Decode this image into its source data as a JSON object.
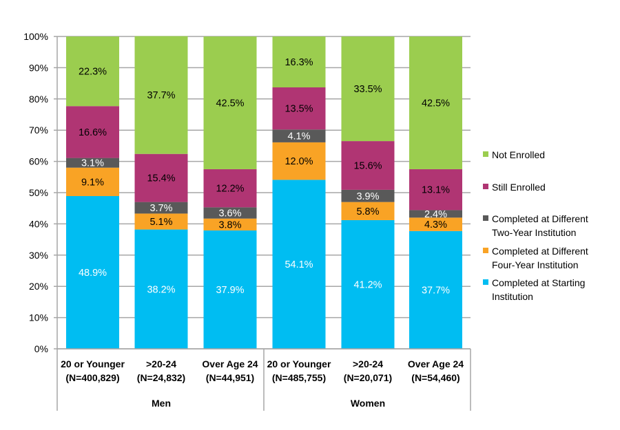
{
  "chart_data": {
    "type": "bar",
    "stacked": true,
    "ylim": [
      0,
      100
    ],
    "y_ticks": [
      "0%",
      "10%",
      "20%",
      "30%",
      "40%",
      "50%",
      "60%",
      "70%",
      "80%",
      "90%",
      "100%"
    ],
    "grid": true,
    "legend_position": "right",
    "groups": [
      {
        "label": "Men",
        "categories": [
          {
            "line1": "20 or Younger",
            "line2": "(N=400,829)"
          },
          {
            "line1": ">20-24",
            "line2": "(N=24,832)"
          },
          {
            "line1": "Over Age 24",
            "line2": "(N=44,951)"
          }
        ]
      },
      {
        "label": "Women",
        "categories": [
          {
            "line1": "20 or Younger",
            "line2": "(N=485,755)"
          },
          {
            "line1": ">20-24",
            "line2": "(N=20,071)"
          },
          {
            "line1": "Over Age 24",
            "line2": "(N=54,460)"
          }
        ]
      }
    ],
    "series": [
      {
        "name": "Completed at Starting Institution",
        "legend_lines": [
          "Completed at Starting",
          "Institution"
        ],
        "color": "#00BDF2",
        "label_color": "#FFFFFF",
        "values": [
          48.9,
          38.2,
          37.9,
          54.1,
          41.2,
          37.7
        ]
      },
      {
        "name": "Completed at Different Four-Year Institution",
        "legend_lines": [
          "Completed at Different",
          "Four-Year Institution"
        ],
        "color": "#F9A325",
        "label_color": "#000000",
        "values": [
          9.1,
          5.1,
          3.8,
          12.0,
          5.8,
          4.3
        ]
      },
      {
        "name": "Completed at Different Two-Year Institution",
        "legend_lines": [
          "Completed at Different",
          "Two-Year Institution"
        ],
        "color": "#595959",
        "label_color": "#FFFFFF",
        "values": [
          3.1,
          3.7,
          3.6,
          4.1,
          3.9,
          2.4
        ]
      },
      {
        "name": "Still Enrolled",
        "legend_lines": [
          "Still Enrolled"
        ],
        "color": "#B03573",
        "label_color": "#000000",
        "values": [
          16.6,
          15.4,
          12.2,
          13.5,
          15.6,
          13.1
        ]
      },
      {
        "name": "Not Enrolled",
        "legend_lines": [
          "Not Enrolled"
        ],
        "color": "#9BCD4F",
        "label_color": "#000000",
        "values": [
          22.3,
          37.7,
          42.5,
          16.3,
          33.5,
          42.5
        ]
      }
    ]
  }
}
